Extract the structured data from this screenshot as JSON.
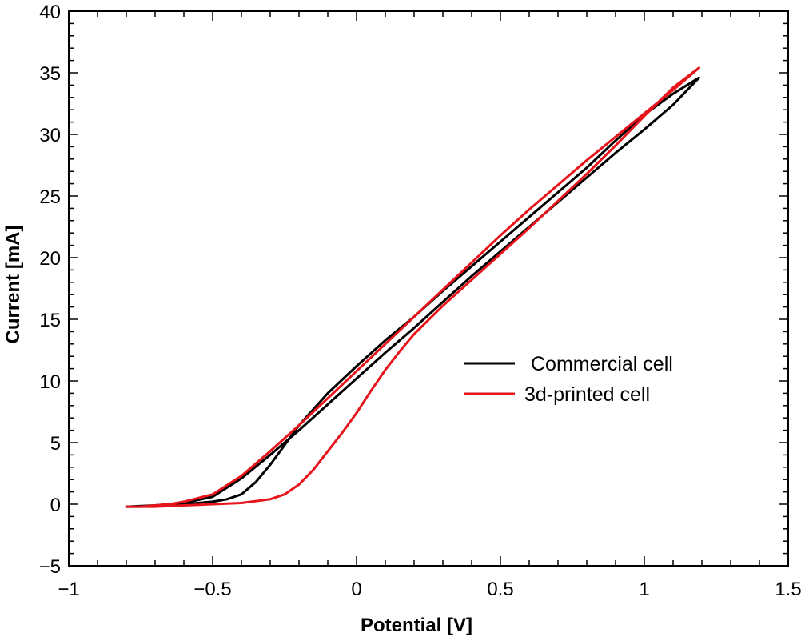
{
  "chart_data": {
    "type": "line",
    "title": "",
    "xlabel": "Potential [V]",
    "ylabel": "Current [mA]",
    "xlim": [
      -1,
      1.5
    ],
    "ylim": [
      -5,
      40
    ],
    "xticks": [
      -1,
      -0.5,
      0,
      0.5,
      1,
      1.5
    ],
    "xtick_labels": [
      "−1",
      "−0.5",
      "0",
      "0.5",
      "1",
      "1.5"
    ],
    "yticks": [
      -5,
      0,
      5,
      10,
      15,
      20,
      25,
      30,
      35,
      40
    ],
    "ytick_labels": [
      "−5",
      "0",
      "5",
      "10",
      "15",
      "20",
      "25",
      "30",
      "35",
      "40"
    ],
    "grid": false,
    "legend_position": "center-right",
    "series": [
      {
        "name": "Commercial cell",
        "color": "#000000",
        "x": [
          -0.8,
          -0.7,
          -0.6,
          -0.5,
          -0.45,
          -0.4,
          -0.35,
          -0.3,
          -0.25,
          -0.2,
          -0.1,
          0.0,
          0.1,
          0.2,
          0.3,
          0.4,
          0.5,
          0.6,
          0.7,
          0.8,
          0.9,
          1.0,
          1.1,
          1.19,
          1.1,
          1.0,
          0.9,
          0.8,
          0.7,
          0.6,
          0.5,
          0.4,
          0.3,
          0.2,
          0.1,
          0.0,
          -0.1,
          -0.2,
          -0.3,
          -0.4,
          -0.5,
          -0.6,
          -0.65,
          -0.7,
          -0.75,
          -0.8
        ],
        "y": [
          -0.2,
          -0.1,
          0.0,
          0.2,
          0.4,
          0.8,
          1.8,
          3.2,
          4.8,
          6.4,
          9.0,
          11.2,
          13.3,
          15.2,
          17.3,
          19.3,
          21.3,
          23.3,
          25.3,
          27.3,
          29.5,
          31.6,
          33.3,
          34.6,
          32.4,
          30.4,
          28.5,
          26.5,
          24.5,
          22.5,
          20.5,
          18.5,
          16.4,
          14.3,
          12.3,
          10.2,
          8.1,
          6.0,
          4.0,
          2.1,
          0.6,
          0.1,
          0.0,
          -0.1,
          -0.2,
          -0.2
        ]
      },
      {
        "name": "3d-printed cell",
        "color": "#e8141c",
        "x": [
          -0.8,
          -0.7,
          -0.6,
          -0.5,
          -0.4,
          -0.3,
          -0.25,
          -0.2,
          -0.15,
          -0.1,
          -0.05,
          0.0,
          0.05,
          0.1,
          0.15,
          0.2,
          0.3,
          0.4,
          0.5,
          0.6,
          0.7,
          0.8,
          0.9,
          1.0,
          1.1,
          1.19,
          1.1,
          1.0,
          0.9,
          0.8,
          0.7,
          0.6,
          0.5,
          0.4,
          0.3,
          0.2,
          0.1,
          0.0,
          -0.1,
          -0.2,
          -0.3,
          -0.4,
          -0.5,
          -0.6,
          -0.65,
          -0.7,
          -0.75,
          -0.8
        ],
        "y": [
          -0.2,
          -0.2,
          -0.1,
          0.0,
          0.1,
          0.4,
          0.8,
          1.6,
          2.8,
          4.3,
          5.8,
          7.4,
          9.2,
          10.9,
          12.4,
          13.8,
          16.1,
          18.2,
          20.3,
          22.4,
          24.6,
          26.8,
          29.1,
          31.5,
          33.8,
          35.4,
          33.6,
          31.7,
          29.8,
          27.9,
          25.9,
          23.9,
          21.8,
          19.6,
          17.4,
          15.2,
          13.0,
          10.8,
          8.6,
          6.4,
          4.3,
          2.3,
          0.8,
          0.2,
          0.0,
          -0.1,
          -0.2,
          -0.2
        ]
      }
    ]
  }
}
